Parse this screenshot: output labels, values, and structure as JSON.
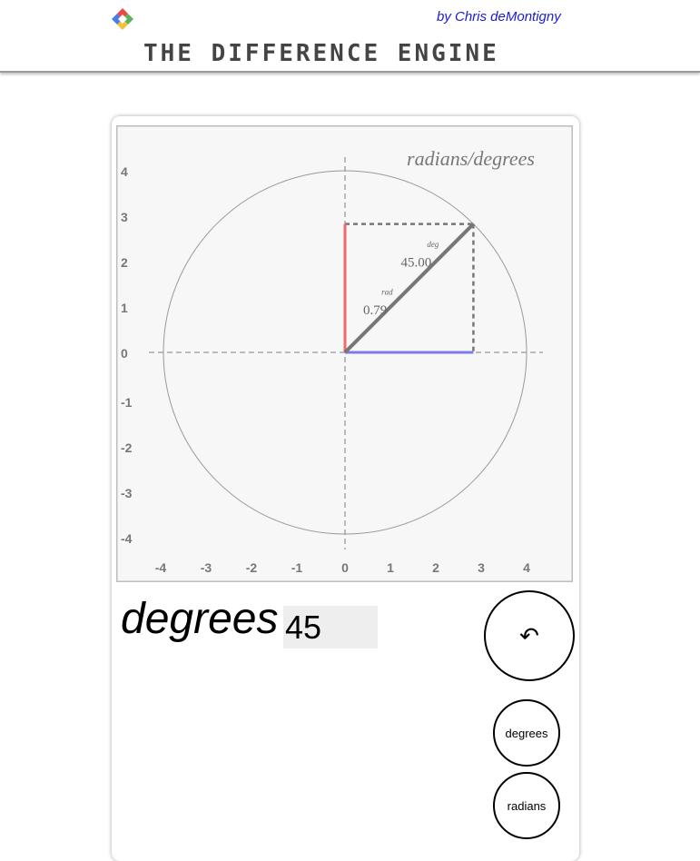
{
  "header": {
    "byline": "by Chris deMontigny",
    "title": "THE DIFFERENCE ENGINE",
    "logo_icon": "diamond-logo-icon"
  },
  "plot": {
    "title": "radians/degrees",
    "angle_degrees": 45,
    "radius": 4,
    "xlim": [
      -4.5,
      4.5
    ],
    "ylim": [
      -4.5,
      4.5
    ],
    "x_ticks": [
      "-4",
      "-3",
      "-2",
      "-1",
      "0",
      "1",
      "2",
      "3",
      "4"
    ],
    "y_ticks": [
      "4",
      "3",
      "2",
      "1",
      "0",
      "-1",
      "-2",
      "-3",
      "-4"
    ],
    "deg_tag": "deg",
    "deg_value": "45.00",
    "rad_tag": "rad",
    "rad_value": "0.79",
    "colors": {
      "background": "#f7f7f7",
      "circle": "#999999",
      "axes": "#bbbbbb",
      "radius_line": "#777777",
      "sine": "#f06a6a",
      "cosine": "#7c7ce8"
    }
  },
  "controls": {
    "unit_label": "degrees",
    "input_value": "45",
    "undo_icon": "undo-arrow-icon",
    "undo_glyph": "↶",
    "degrees_button": "degrees",
    "radians_button": "radians"
  }
}
